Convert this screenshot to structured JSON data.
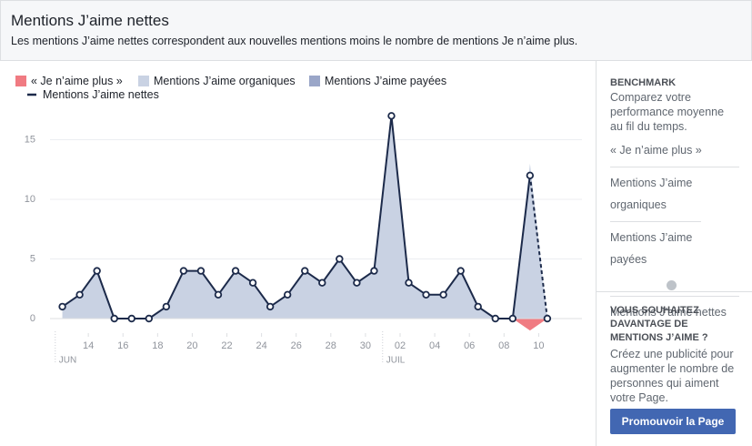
{
  "header": {
    "title": "Mentions J’aime nettes",
    "subtitle": "Les mentions J’aime nettes correspondent aux nouvelles mentions moins le nombre de mentions Je n’aime plus."
  },
  "chart_data": {
    "type": "area",
    "x": [
      0,
      1,
      2,
      3,
      4,
      5,
      6,
      7,
      8,
      9,
      10,
      11,
      12,
      13,
      14,
      15,
      16,
      17,
      18,
      19,
      20,
      21,
      22,
      23,
      24,
      25,
      26,
      27,
      28
    ],
    "xlim": [
      -1.5,
      30
    ],
    "xticks": [
      {
        "value": 1.5,
        "label": "14"
      },
      {
        "value": 3.5,
        "label": "16"
      },
      {
        "value": 5.5,
        "label": "18"
      },
      {
        "value": 7.5,
        "label": "20"
      },
      {
        "value": 9.5,
        "label": "22"
      },
      {
        "value": 11.5,
        "label": "24"
      },
      {
        "value": 13.5,
        "label": "26"
      },
      {
        "value": 15.5,
        "label": "28"
      },
      {
        "value": 17.5,
        "label": "30"
      },
      {
        "value": 19.5,
        "label": "02"
      },
      {
        "value": 21.5,
        "label": "04"
      },
      {
        "value": 23.5,
        "label": "06"
      },
      {
        "value": 25.5,
        "label": "08"
      },
      {
        "value": 27.5,
        "label": "10"
      }
    ],
    "months": [
      {
        "value": -0.2,
        "label": "JUN"
      },
      {
        "value": 18.7,
        "label": "JUIL"
      }
    ],
    "ylim": [
      -1,
      17.5
    ],
    "yticks": [
      0,
      5,
      10,
      15
    ],
    "grid": true,
    "series": [
      {
        "name": "« Je n’aime plus »",
        "color": "#f07b82",
        "values": [
          0,
          0,
          0,
          0,
          0,
          0,
          0,
          0,
          0,
          0,
          0,
          0,
          0,
          0,
          0,
          0,
          0,
          0,
          0,
          0,
          0,
          0,
          0,
          0,
          0,
          0,
          0,
          -1,
          0
        ]
      },
      {
        "name": "Mentions J’aime organiques",
        "color": "#c9d2e3",
        "values": [
          1,
          2,
          4,
          0,
          0,
          0,
          1,
          4,
          4,
          2,
          4,
          3,
          1,
          2,
          4,
          3,
          5,
          3,
          4,
          17,
          3,
          2,
          2,
          4,
          1,
          0,
          0,
          13,
          0
        ]
      },
      {
        "name": "Mentions J’aime payées",
        "color": "#9aa6c8",
        "values": [
          0,
          0,
          0,
          0,
          0,
          0,
          0,
          0,
          0,
          0,
          0,
          0,
          0,
          0,
          0,
          0,
          0,
          0,
          0,
          0,
          0,
          0,
          0,
          0,
          0,
          0,
          0,
          0,
          0
        ]
      },
      {
        "name": "Mentions J’aime nettes",
        "color": "#1c2a4a",
        "values": [
          1,
          2,
          4,
          0,
          0,
          0,
          1,
          4,
          4,
          2,
          4,
          3,
          1,
          2,
          4,
          3,
          5,
          3,
          4,
          17,
          3,
          2,
          2,
          4,
          1,
          0,
          0,
          12,
          0
        ]
      }
    ]
  },
  "sidebar": {
    "heading": "BENCHMARK",
    "text": "Comparez votre performance moyenne au fil du temps.",
    "promo_heading": "VOUS SOUHAITEZ DAVANTAGE DE MENTIONS J’AIME ?",
    "promo_text": "Créez une publicité pour augmenter le nombre de personnes qui aiment votre Page.",
    "button": "Promouvoir la Page"
  }
}
